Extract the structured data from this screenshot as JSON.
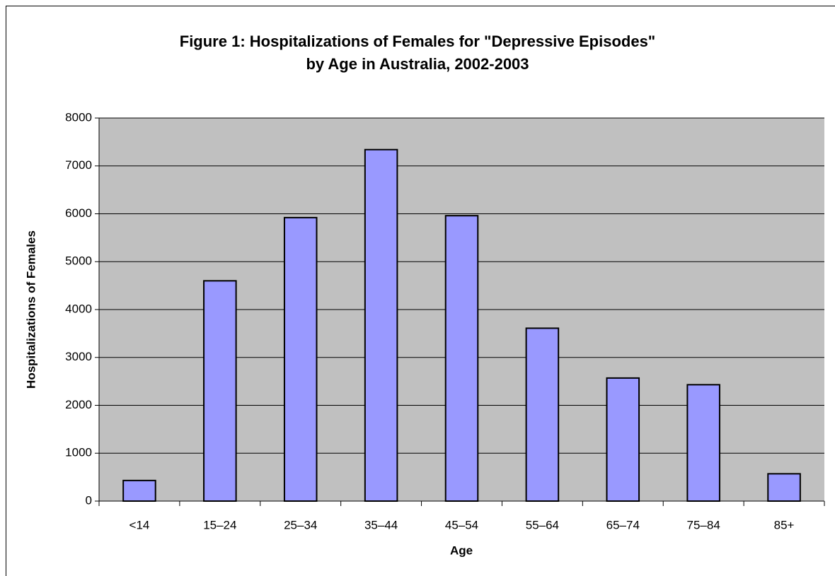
{
  "chart_data": {
    "type": "bar",
    "title": [
      "Figure 1: Hospitalizations of Females for \"Depressive Episodes\"",
      "by Age in Australia, 2002-2003"
    ],
    "x_label": "Age",
    "y_label": "Hospitalizations of Females",
    "categories": [
      "<14",
      "15–24",
      "25–34",
      "35–44",
      "45–54",
      "55–64",
      "65–74",
      "75–84",
      "85+"
    ],
    "values": [
      430,
      4600,
      5920,
      7340,
      5960,
      3610,
      2570,
      2430,
      570
    ],
    "color": "#9999ff",
    "ylim": [
      0,
      8000
    ],
    "yticks": [
      0,
      1000,
      2000,
      3000,
      4000,
      5000,
      6000,
      7000,
      8000
    ],
    "grid": true
  }
}
